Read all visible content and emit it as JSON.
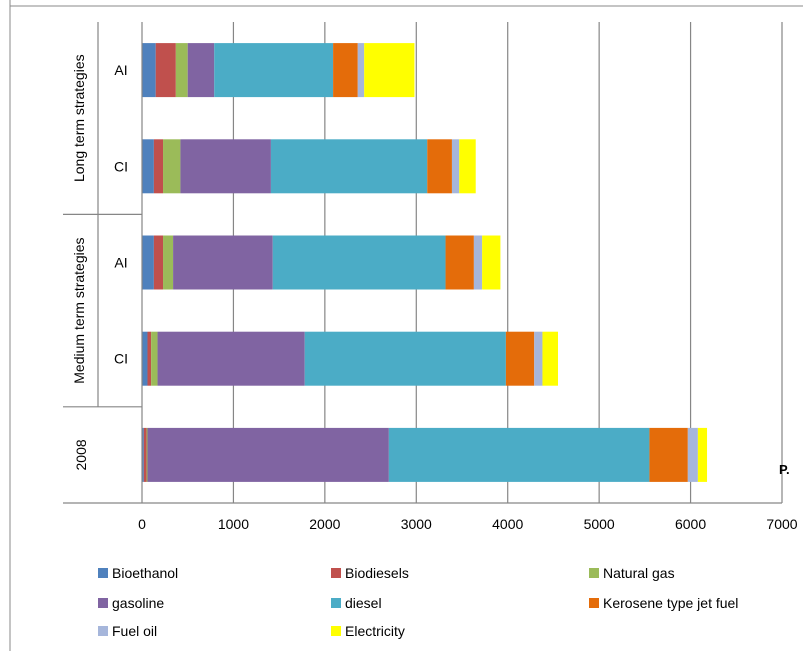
{
  "chart_data": {
    "type": "bar",
    "orientation": "horizontal",
    "stacked": true,
    "categories": [
      {
        "label": "2008",
        "group": ""
      },
      {
        "label": "CI",
        "group": "Medium term strategies"
      },
      {
        "label": "AI",
        "group": "Medium term strategies"
      },
      {
        "label": "CI",
        "group": "Long term strategies"
      },
      {
        "label": "AI",
        "group": "Long term strategies"
      }
    ],
    "groups": [
      "Medium term strategies",
      "Long term strategies"
    ],
    "xlim": [
      0,
      7000
    ],
    "xticks": [
      0,
      1000,
      2000,
      3000,
      4000,
      5000,
      6000,
      7000
    ],
    "xtick_labels": [
      "0",
      "1000",
      "2000",
      "3000",
      "4000",
      "5000",
      "6000",
      "7000"
    ],
    "xlabel": "P.",
    "grid": "vertical major gridlines",
    "legend_position": "bottom",
    "series": [
      {
        "name": "Bioethanol",
        "color": "#4F81BD",
        "values": [
          20,
          60,
          130,
          130,
          150
        ]
      },
      {
        "name": "Biodiesels",
        "color": "#C0504D",
        "values": [
          30,
          40,
          100,
          100,
          220
        ]
      },
      {
        "name": "Natural gas",
        "color": "#9BBB59",
        "values": [
          10,
          70,
          110,
          190,
          130
        ]
      },
      {
        "name": "gasoline",
        "color": "#8064A2",
        "values": [
          2640,
          1610,
          1090,
          990,
          290
        ]
      },
      {
        "name": "diesel",
        "color": "#4BACC6",
        "values": [
          2850,
          2200,
          1890,
          1710,
          1300
        ]
      },
      {
        "name": "Kerosene type jet fuel",
        "color": "#E46C0A",
        "values": [
          420,
          310,
          310,
          270,
          270
        ]
      },
      {
        "name": "Fuel oil",
        "color": "#A6B6DB",
        "values": [
          110,
          90,
          90,
          80,
          70
        ]
      },
      {
        "name": "Electricity",
        "color": "#FFFF00",
        "values": [
          100,
          170,
          200,
          180,
          550
        ]
      }
    ]
  }
}
